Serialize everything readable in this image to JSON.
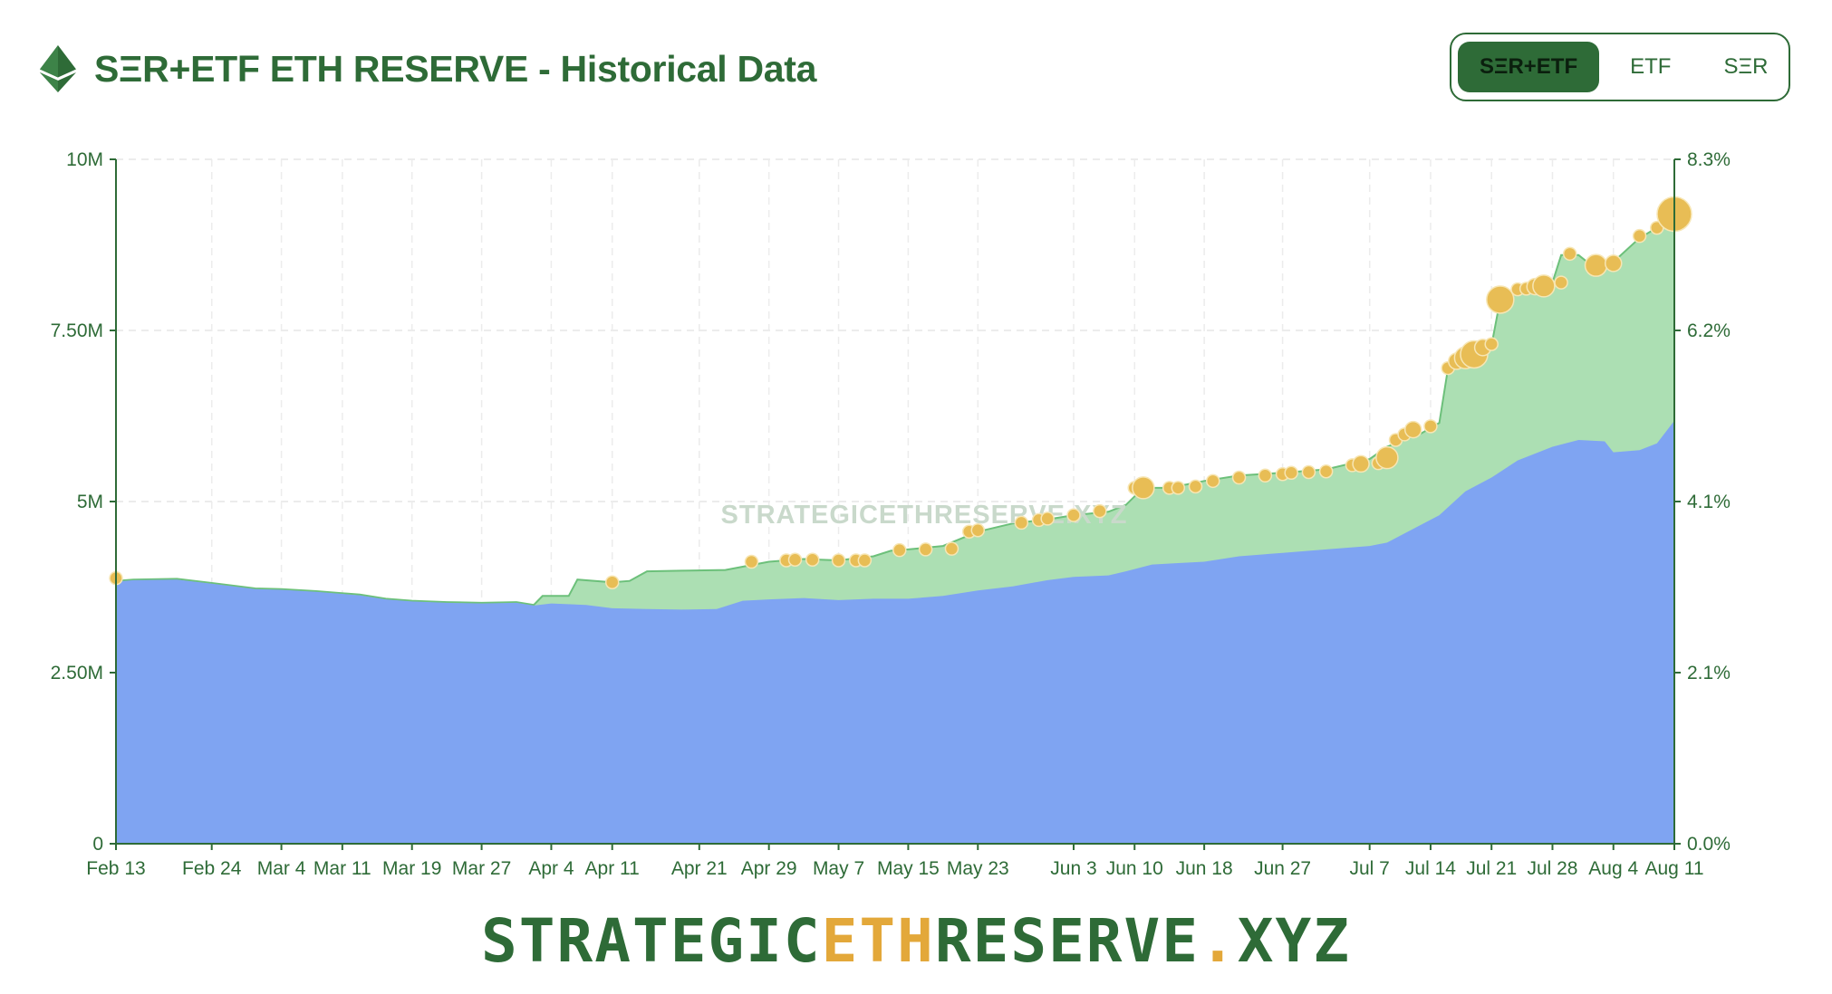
{
  "header": {
    "title": "SΞR+ETF ETH RESERVE - Historical Data",
    "logo_icon": "ethereum-diamond-icon",
    "toggle": [
      {
        "label": "SΞR+ETF",
        "active": true
      },
      {
        "label": "ETF",
        "active": false
      },
      {
        "label": "SΞR",
        "active": false
      }
    ]
  },
  "watermark": "STRATEGICETHRESERVE.XYZ",
  "footer": {
    "part1": "STRATEGIC",
    "part2": "ETH",
    "part3": "RESERVE",
    "part4": ".",
    "part5": "XYZ"
  },
  "colors": {
    "brand_green": "#2e6b37",
    "etf_area": "#7fa4f2",
    "ser_area": "#acdfb3",
    "ser_line": "#6cc07a",
    "marker": "#e8bd55",
    "accent_orange": "#e3a83a"
  },
  "chart_data": {
    "type": "area",
    "stacked": true,
    "x_domain": [
      "2025-02-13",
      "2025-08-11"
    ],
    "x_tick_labels": [
      {
        "date": "2025-02-13",
        "label": "Feb 13"
      },
      {
        "date": "2025-02-24",
        "label": "Feb 24"
      },
      {
        "date": "2025-03-04",
        "label": "Mar 4"
      },
      {
        "date": "2025-03-11",
        "label": "Mar 11"
      },
      {
        "date": "2025-03-19",
        "label": "Mar 19"
      },
      {
        "date": "2025-03-27",
        "label": "Mar 27"
      },
      {
        "date": "2025-04-04",
        "label": "Apr 4"
      },
      {
        "date": "2025-04-11",
        "label": "Apr 11"
      },
      {
        "date": "2025-04-21",
        "label": "Apr 21"
      },
      {
        "date": "2025-04-29",
        "label": "Apr 29"
      },
      {
        "date": "2025-05-07",
        "label": "May 7"
      },
      {
        "date": "2025-05-15",
        "label": "May 15"
      },
      {
        "date": "2025-05-23",
        "label": "May 23"
      },
      {
        "date": "2025-06-03",
        "label": "Jun 3"
      },
      {
        "date": "2025-06-10",
        "label": "Jun 10"
      },
      {
        "date": "2025-06-18",
        "label": "Jun 18"
      },
      {
        "date": "2025-06-27",
        "label": "Jun 27"
      },
      {
        "date": "2025-07-07",
        "label": "Jul 7"
      },
      {
        "date": "2025-07-14",
        "label": "Jul 14"
      },
      {
        "date": "2025-07-21",
        "label": "Jul 21"
      },
      {
        "date": "2025-07-28",
        "label": "Jul 28"
      },
      {
        "date": "2025-08-04",
        "label": "Aug 4"
      },
      {
        "date": "2025-08-11",
        "label": "Aug 11"
      }
    ],
    "y_left": {
      "min": 0,
      "max": 10000000,
      "ticks": [
        0,
        2500000,
        5000000,
        7500000,
        10000000
      ],
      "tick_labels": [
        "0",
        "2.50M",
        "5M",
        "7.50M",
        "10M"
      ]
    },
    "y_right": {
      "min": 0,
      "max": 8.3,
      "tick_labels": [
        "0.0%",
        "2.1%",
        "4.1%",
        "6.2%",
        "8.3%"
      ]
    },
    "grid": true,
    "series": [
      {
        "points": [
          [
            "2025-02-13",
            3830000
          ],
          [
            "2025-02-15",
            3850000
          ],
          [
            "2025-02-20",
            3860000
          ],
          [
            "2025-02-24",
            3800000
          ],
          [
            "2025-03-01",
            3720000
          ],
          [
            "2025-03-04",
            3710000
          ],
          [
            "2025-03-08",
            3680000
          ],
          [
            "2025-03-13",
            3630000
          ],
          [
            "2025-03-16",
            3570000
          ],
          [
            "2025-03-19",
            3540000
          ],
          [
            "2025-03-23",
            3520000
          ],
          [
            "2025-03-27",
            3510000
          ],
          [
            "2025-03-31",
            3520000
          ],
          [
            "2025-04-02",
            3480000
          ],
          [
            "2025-04-04",
            3510000
          ],
          [
            "2025-04-08",
            3490000
          ],
          [
            "2025-04-11",
            3440000
          ],
          [
            "2025-04-15",
            3430000
          ],
          [
            "2025-04-19",
            3420000
          ],
          [
            "2025-04-23",
            3430000
          ],
          [
            "2025-04-26",
            3550000
          ],
          [
            "2025-04-29",
            3570000
          ],
          [
            "2025-05-03",
            3590000
          ],
          [
            "2025-05-07",
            3560000
          ],
          [
            "2025-05-11",
            3580000
          ],
          [
            "2025-05-15",
            3580000
          ],
          [
            "2025-05-19",
            3620000
          ],
          [
            "2025-05-23",
            3700000
          ],
          [
            "2025-05-27",
            3760000
          ],
          [
            "2025-05-31",
            3850000
          ],
          [
            "2025-06-03",
            3900000
          ],
          [
            "2025-06-07",
            3920000
          ],
          [
            "2025-06-09",
            3980000
          ],
          [
            "2025-06-12",
            4080000
          ],
          [
            "2025-06-15",
            4100000
          ],
          [
            "2025-06-18",
            4120000
          ],
          [
            "2025-06-22",
            4200000
          ],
          [
            "2025-06-27",
            4250000
          ],
          [
            "2025-07-02",
            4300000
          ],
          [
            "2025-07-07",
            4350000
          ],
          [
            "2025-07-09",
            4400000
          ],
          [
            "2025-07-12",
            4600000
          ],
          [
            "2025-07-15",
            4800000
          ],
          [
            "2025-07-18",
            5150000
          ],
          [
            "2025-07-21",
            5350000
          ],
          [
            "2025-07-24",
            5600000
          ],
          [
            "2025-07-28",
            5800000
          ],
          [
            "2025-07-31",
            5900000
          ],
          [
            "2025-08-03",
            5880000
          ],
          [
            "2025-08-04",
            5720000
          ],
          [
            "2025-08-07",
            5750000
          ],
          [
            "2025-08-09",
            5850000
          ],
          [
            "2025-08-11",
            6180000
          ]
        ]
      },
      {
        "points": [
          [
            "2025-02-13",
            3840000
          ],
          [
            "2025-02-15",
            3860000
          ],
          [
            "2025-02-20",
            3870000
          ],
          [
            "2025-02-24",
            3810000
          ],
          [
            "2025-03-01",
            3730000
          ],
          [
            "2025-03-04",
            3720000
          ],
          [
            "2025-03-08",
            3690000
          ],
          [
            "2025-03-13",
            3640000
          ],
          [
            "2025-03-16",
            3580000
          ],
          [
            "2025-03-19",
            3550000
          ],
          [
            "2025-03-23",
            3530000
          ],
          [
            "2025-03-27",
            3520000
          ],
          [
            "2025-03-31",
            3530000
          ],
          [
            "2025-04-02",
            3490000
          ],
          [
            "2025-04-03",
            3620000
          ],
          [
            "2025-04-06",
            3620000
          ],
          [
            "2025-04-07",
            3860000
          ],
          [
            "2025-04-11",
            3820000
          ],
          [
            "2025-04-13",
            3840000
          ],
          [
            "2025-04-15",
            3980000
          ],
          [
            "2025-04-19",
            3990000
          ],
          [
            "2025-04-24",
            4000000
          ],
          [
            "2025-04-29",
            4120000
          ],
          [
            "2025-05-03",
            4160000
          ],
          [
            "2025-05-07",
            4140000
          ],
          [
            "2025-05-11",
            4200000
          ],
          [
            "2025-05-13",
            4280000
          ],
          [
            "2025-05-15",
            4300000
          ],
          [
            "2025-05-19",
            4350000
          ],
          [
            "2025-05-23",
            4560000
          ],
          [
            "2025-05-27",
            4680000
          ],
          [
            "2025-05-31",
            4740000
          ],
          [
            "2025-06-03",
            4800000
          ],
          [
            "2025-06-07",
            4850000
          ],
          [
            "2025-06-09",
            4950000
          ],
          [
            "2025-06-11",
            5200000
          ],
          [
            "2025-06-14",
            5200000
          ],
          [
            "2025-06-18",
            5300000
          ],
          [
            "2025-06-22",
            5380000
          ],
          [
            "2025-06-27",
            5420000
          ],
          [
            "2025-07-02",
            5470000
          ],
          [
            "2025-07-07",
            5620000
          ],
          [
            "2025-07-09",
            5800000
          ],
          [
            "2025-07-13",
            6000000
          ],
          [
            "2025-07-15",
            6150000
          ],
          [
            "2025-07-16",
            6950000
          ],
          [
            "2025-07-19",
            7150000
          ],
          [
            "2025-07-21",
            7280000
          ],
          [
            "2025-07-22",
            7950000
          ],
          [
            "2025-07-25",
            8150000
          ],
          [
            "2025-07-28",
            8200000
          ],
          [
            "2025-07-29",
            8600000
          ],
          [
            "2025-07-31",
            8600000
          ],
          [
            "2025-08-02",
            8400000
          ],
          [
            "2025-08-04",
            8500000
          ],
          [
            "2025-08-07",
            8850000
          ],
          [
            "2025-08-09",
            9000000
          ],
          [
            "2025-08-11",
            9250000
          ]
        ]
      }
    ],
    "markers": [
      {
        "date": "2025-02-13",
        "value": 3880000,
        "size": 1
      },
      {
        "date": "2025-04-11",
        "value": 3820000,
        "size": 1
      },
      {
        "date": "2025-04-27",
        "value": 4120000,
        "size": 1
      },
      {
        "date": "2025-05-01",
        "value": 4140000,
        "size": 1
      },
      {
        "date": "2025-05-02",
        "value": 4150000,
        "size": 1
      },
      {
        "date": "2025-05-04",
        "value": 4150000,
        "size": 1
      },
      {
        "date": "2025-05-07",
        "value": 4140000,
        "size": 1
      },
      {
        "date": "2025-05-09",
        "value": 4140000,
        "size": 1
      },
      {
        "date": "2025-05-10",
        "value": 4140000,
        "size": 1
      },
      {
        "date": "2025-05-14",
        "value": 4290000,
        "size": 1
      },
      {
        "date": "2025-05-17",
        "value": 4300000,
        "size": 1
      },
      {
        "date": "2025-05-20",
        "value": 4310000,
        "size": 1
      },
      {
        "date": "2025-05-22",
        "value": 4560000,
        "size": 1
      },
      {
        "date": "2025-05-23",
        "value": 4580000,
        "size": 1
      },
      {
        "date": "2025-05-28",
        "value": 4690000,
        "size": 1
      },
      {
        "date": "2025-05-30",
        "value": 4730000,
        "size": 1
      },
      {
        "date": "2025-05-31",
        "value": 4750000,
        "size": 1
      },
      {
        "date": "2025-06-03",
        "value": 4800000,
        "size": 1
      },
      {
        "date": "2025-06-06",
        "value": 4860000,
        "size": 1
      },
      {
        "date": "2025-06-10",
        "value": 5200000,
        "size": 1
      },
      {
        "date": "2025-06-11",
        "value": 5200000,
        "size": 3
      },
      {
        "date": "2025-06-14",
        "value": 5200000,
        "size": 1
      },
      {
        "date": "2025-06-15",
        "value": 5200000,
        "size": 1
      },
      {
        "date": "2025-06-17",
        "value": 5220000,
        "size": 1
      },
      {
        "date": "2025-06-19",
        "value": 5300000,
        "size": 1
      },
      {
        "date": "2025-06-22",
        "value": 5350000,
        "size": 1
      },
      {
        "date": "2025-06-25",
        "value": 5380000,
        "size": 1
      },
      {
        "date": "2025-06-27",
        "value": 5400000,
        "size": 1
      },
      {
        "date": "2025-06-28",
        "value": 5420000,
        "size": 1
      },
      {
        "date": "2025-06-30",
        "value": 5430000,
        "size": 1
      },
      {
        "date": "2025-07-02",
        "value": 5440000,
        "size": 1
      },
      {
        "date": "2025-07-05",
        "value": 5530000,
        "size": 1
      },
      {
        "date": "2025-07-06",
        "value": 5550000,
        "size": 2
      },
      {
        "date": "2025-07-08",
        "value": 5560000,
        "size": 1
      },
      {
        "date": "2025-07-09",
        "value": 5640000,
        "size": 3
      },
      {
        "date": "2025-07-10",
        "value": 5900000,
        "size": 1
      },
      {
        "date": "2025-07-11",
        "value": 5980000,
        "size": 1
      },
      {
        "date": "2025-07-12",
        "value": 6050000,
        "size": 2
      },
      {
        "date": "2025-07-14",
        "value": 6100000,
        "size": 1
      },
      {
        "date": "2025-07-16",
        "value": 6950000,
        "size": 1
      },
      {
        "date": "2025-07-17",
        "value": 7050000,
        "size": 2
      },
      {
        "date": "2025-07-18",
        "value": 7100000,
        "size": 3
      },
      {
        "date": "2025-07-19",
        "value": 7150000,
        "size": 4
      },
      {
        "date": "2025-07-20",
        "value": 7250000,
        "size": 2
      },
      {
        "date": "2025-07-21",
        "value": 7300000,
        "size": 1
      },
      {
        "date": "2025-07-22",
        "value": 7950000,
        "size": 4
      },
      {
        "date": "2025-07-24",
        "value": 8100000,
        "size": 1
      },
      {
        "date": "2025-07-25",
        "value": 8110000,
        "size": 1
      },
      {
        "date": "2025-07-26",
        "value": 8140000,
        "size": 2
      },
      {
        "date": "2025-07-27",
        "value": 8150000,
        "size": 3
      },
      {
        "date": "2025-07-29",
        "value": 8200000,
        "size": 1
      },
      {
        "date": "2025-07-30",
        "value": 8620000,
        "size": 1
      },
      {
        "date": "2025-08-02",
        "value": 8450000,
        "size": 3
      },
      {
        "date": "2025-08-04",
        "value": 8480000,
        "size": 2
      },
      {
        "date": "2025-08-07",
        "value": 8880000,
        "size": 1
      },
      {
        "date": "2025-08-09",
        "value": 9000000,
        "size": 1
      },
      {
        "date": "2025-08-11",
        "value": 9200000,
        "size": 5
      }
    ]
  }
}
